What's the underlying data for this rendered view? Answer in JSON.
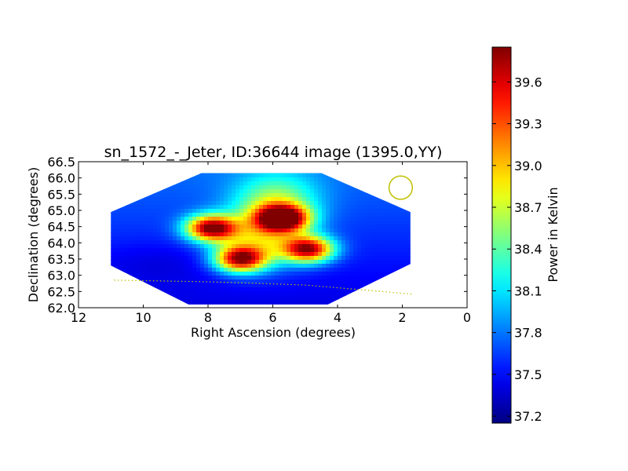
{
  "chart_data": {
    "type": "heatmap",
    "title": "sn_1572_-_Jeter, ID:36644 image (1395.0,YY)",
    "xlabel": "Right Ascension (degrees)",
    "ylabel": "Declination (degrees)",
    "xlim": [
      12,
      0
    ],
    "ylim": [
      62.0,
      66.5
    ],
    "x_ticks": [
      12,
      10,
      8,
      6,
      4,
      2,
      0
    ],
    "y_ticks": [
      62.0,
      62.5,
      63.0,
      63.5,
      64.0,
      64.5,
      65.0,
      65.5,
      66.0,
      66.5
    ],
    "x_tick_labels": [
      "12",
      "10",
      "8",
      "6",
      "4",
      "2",
      "0"
    ],
    "y_tick_labels": [
      "62.0",
      "62.5",
      "63.0",
      "63.5",
      "64.0",
      "64.5",
      "65.0",
      "65.5",
      "66.0",
      "66.5"
    ],
    "colorbar": {
      "label": "Power in Kelvin",
      "range": [
        37.15,
        39.85
      ],
      "ticks": [
        37.2,
        37.5,
        37.8,
        38.1,
        38.4,
        38.7,
        39.0,
        39.3,
        39.6
      ],
      "tick_labels": [
        "37.2",
        "37.5",
        "37.8",
        "38.1",
        "38.4",
        "38.7",
        "39.0",
        "39.3",
        "39.6"
      ],
      "colormap": "jet"
    },
    "map_footprint_ra_dec": [
      [
        8.2,
        66.15
      ],
      [
        4.5,
        66.15
      ],
      [
        1.75,
        64.95
      ],
      [
        1.75,
        63.35
      ],
      [
        4.3,
        62.1
      ],
      [
        8.6,
        62.1
      ],
      [
        11.0,
        63.3
      ],
      [
        11.0,
        64.95
      ]
    ],
    "background_level": 37.6,
    "sources": [
      {
        "ra": 7.9,
        "dec": 64.45,
        "peak": 39.8
      },
      {
        "ra": 5.7,
        "dec": 64.75,
        "peak": 39.85
      },
      {
        "ra": 7.0,
        "dec": 63.5,
        "peak": 39.6
      },
      {
        "ra": 4.9,
        "dec": 63.8,
        "peak": 39.7
      },
      {
        "ra": 6.4,
        "dec": 64.1,
        "peak": 38.55
      },
      {
        "ra": 5.9,
        "dec": 65.25,
        "peak": 38.5
      }
    ],
    "beam_circle": {
      "ra": 2.05,
      "dec": 65.7,
      "radius_deg": 0.36,
      "color": "#bfbf00"
    },
    "galactic_plane_line": {
      "points": [
        [
          10.9,
          62.85
        ],
        [
          8.0,
          62.8
        ],
        [
          5.0,
          62.7
        ],
        [
          1.7,
          62.42
        ]
      ],
      "style": "dotted",
      "color": "#bfbf00"
    },
    "grid": false
  }
}
